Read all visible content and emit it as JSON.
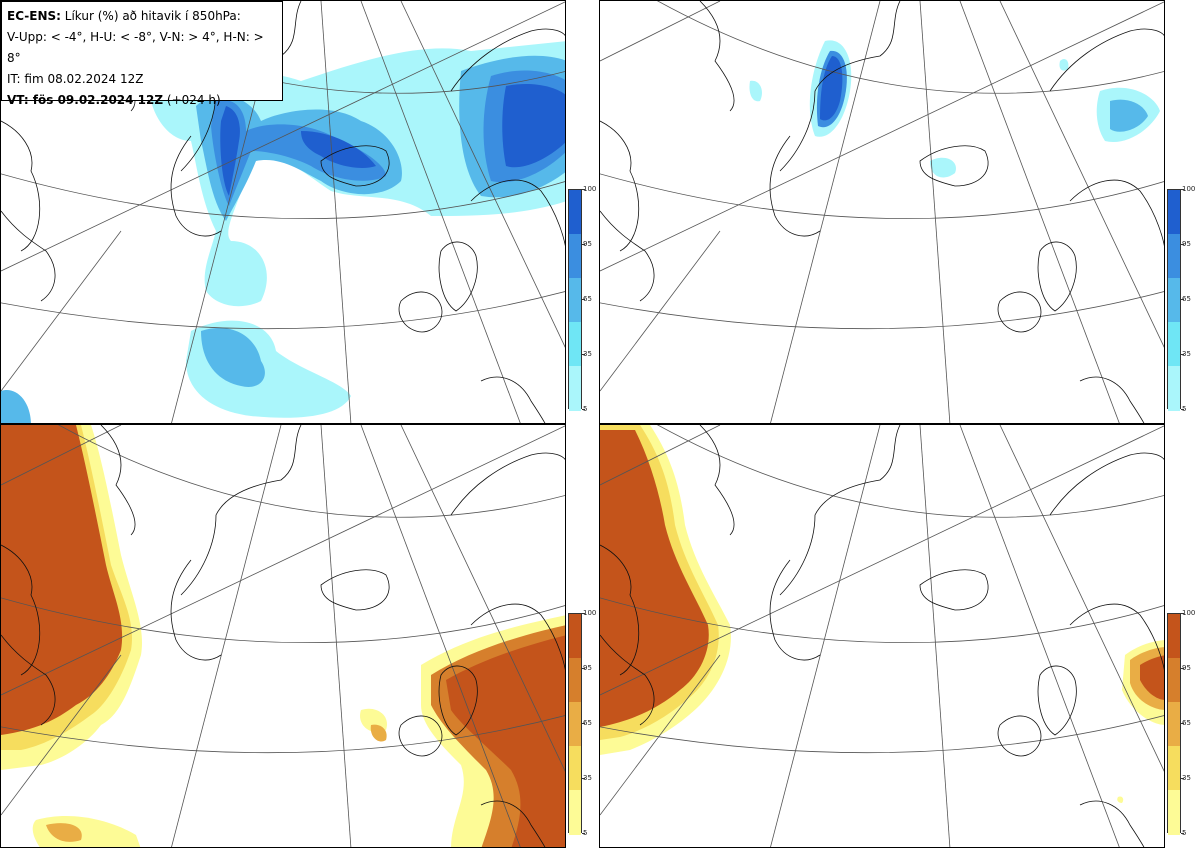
{
  "header": {
    "model": "EC-ENS:",
    "description": "Líkur (%) að hitavik í 850hPa:",
    "thresholds": "V-Upp: < -4°, H-U: < -8°, V-N: > 4°, H-N: > 8°",
    "initial_time": "IT: fim 08.02.2024 12Z",
    "valid_label": "VT: fös 09.02.2024 12Z",
    "lead_time": "(+024 h)"
  },
  "colorbars": {
    "cold": {
      "ticks": [
        "100",
        "95",
        "65",
        "35",
        "5"
      ],
      "colors": [
        "#1f5fcf",
        "#3b8ee0",
        "#56b9ea",
        "#6fe6f5",
        "#aaf6fb"
      ]
    },
    "warm": {
      "ticks": [
        "100",
        "95",
        "65",
        "35",
        "5"
      ],
      "colors": [
        "#c4541b",
        "#d67f2c",
        "#e9ad45",
        "#f6dd5e",
        "#fdfb96"
      ]
    }
  },
  "panels": [
    {
      "id": "V-Upp",
      "palette": "cold"
    },
    {
      "id": "H-U",
      "palette": "cold"
    },
    {
      "id": "V-N",
      "palette": "warm"
    },
    {
      "id": "H-N",
      "palette": "warm"
    }
  ]
}
